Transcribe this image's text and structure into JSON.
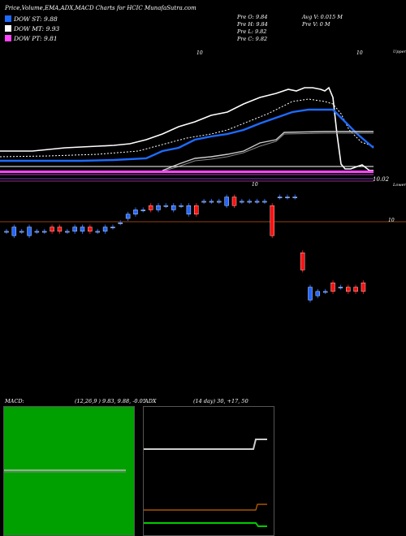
{
  "header": {
    "title": "Price,Volume,EMA,ADX,MACD Charts for HCIC MunafaSutra.com",
    "legend": [
      {
        "label": "DOW ST: 9.88",
        "color": "#1e6bff"
      },
      {
        "label": "DOW MT: 9.93",
        "color": "#ffffff"
      },
      {
        "label": "DOW PT: 9.81",
        "color": "#ff44ff"
      }
    ],
    "ohlc": {
      "open": "Pre   O: 9.84",
      "high": "Pre   H: 9.84",
      "low": "Pre   L: 9.82",
      "close": "Pre   C: 9.82"
    },
    "volume": {
      "avg": "Avg V: 0.015 M",
      "pre": "Pre   V: 0  M"
    }
  },
  "price_panel": {
    "level_upper": "10.02",
    "tag_upper": "Upper",
    "tag_lower": "Lower",
    "marker_10_a": "10",
    "marker_10_b": "10",
    "marker_10_c": "10",
    "marker_10_d": "10"
  },
  "macd_panel": {
    "label": "MACD:",
    "params": "(12,26,9 ) 9.83,  9.88, -0.05"
  },
  "adx_panel": {
    "label": "ADX",
    "params": "(14  day) 30, +17,  50"
  },
  "colors": {
    "up": "#2266ff",
    "down": "#ff1111",
    "dow_st": "#1e6bff",
    "dow_mt": "#ffffff",
    "dow_pt": "#ff44ff",
    "macd_bg": "#00a000",
    "adx_line": "#cccccc",
    "adx_minus": "#cc6600",
    "adx_plus": "#00cc00"
  },
  "chart_data": [
    {
      "type": "candlestick",
      "title": "Price,Volume,EMA,ADX,MACD Charts for HCIC MunafaSutra.com",
      "series": [
        {
          "name": "DOW ST",
          "last": 9.88
        },
        {
          "name": "DOW MT",
          "last": 9.93
        },
        {
          "name": "DOW PT",
          "last": 9.81
        }
      ],
      "candles": [
        {
          "o": 9.96,
          "c": 9.96,
          "dir": "flat"
        },
        {
          "o": 9.95,
          "c": 9.97,
          "dir": "up"
        },
        {
          "o": 9.96,
          "c": 9.96,
          "dir": "flat"
        },
        {
          "o": 9.95,
          "c": 9.97,
          "dir": "up"
        },
        {
          "o": 9.96,
          "c": 9.96,
          "dir": "flat"
        },
        {
          "o": 9.96,
          "c": 9.96,
          "dir": "flat"
        },
        {
          "o": 9.97,
          "c": 9.96,
          "dir": "down"
        },
        {
          "o": 9.97,
          "c": 9.96,
          "dir": "down"
        },
        {
          "o": 9.96,
          "c": 9.96,
          "dir": "flat"
        },
        {
          "o": 9.96,
          "c": 9.97,
          "dir": "up"
        },
        {
          "o": 9.96,
          "c": 9.97,
          "dir": "up"
        },
        {
          "o": 9.97,
          "c": 9.96,
          "dir": "down"
        },
        {
          "o": 9.96,
          "c": 9.96,
          "dir": "flat"
        },
        {
          "o": 9.96,
          "c": 9.97,
          "dir": "up"
        },
        {
          "o": 9.97,
          "c": 9.97,
          "dir": "flat"
        },
        {
          "o": 9.98,
          "c": 9.98,
          "dir": "flat"
        },
        {
          "o": 9.99,
          "c": 10.0,
          "dir": "up"
        },
        {
          "o": 10.0,
          "c": 10.01,
          "dir": "up"
        },
        {
          "o": 10.01,
          "c": 10.01,
          "dir": "flat"
        },
        {
          "o": 10.02,
          "c": 10.01,
          "dir": "down"
        },
        {
          "o": 10.01,
          "c": 10.02,
          "dir": "up"
        },
        {
          "o": 10.02,
          "c": 10.02,
          "dir": "flat"
        },
        {
          "o": 10.01,
          "c": 10.02,
          "dir": "up"
        },
        {
          "o": 10.02,
          "c": 10.02,
          "dir": "flat"
        },
        {
          "o": 10.02,
          "c": 10.0,
          "dir": "up"
        },
        {
          "o": 10.02,
          "c": 10.0,
          "dir": "down"
        },
        {
          "o": 10.03,
          "c": 10.03,
          "dir": "flat"
        },
        {
          "o": 10.03,
          "c": 10.03,
          "dir": "flat"
        },
        {
          "o": 10.03,
          "c": 10.03,
          "dir": "flat"
        },
        {
          "o": 10.02,
          "c": 10.04,
          "dir": "up"
        },
        {
          "o": 10.04,
          "c": 10.02,
          "dir": "down"
        },
        {
          "o": 10.03,
          "c": 10.03,
          "dir": "flat"
        },
        {
          "o": 10.03,
          "c": 10.03,
          "dir": "flat"
        },
        {
          "o": 10.03,
          "c": 10.03,
          "dir": "flat"
        },
        {
          "o": 10.03,
          "c": 10.03,
          "dir": "flat"
        },
        {
          "o": 10.02,
          "c": 9.95,
          "dir": "down"
        },
        {
          "o": 10.04,
          "c": 10.04,
          "dir": "flat"
        },
        {
          "o": 10.04,
          "c": 10.04,
          "dir": "flat"
        },
        {
          "o": 10.04,
          "c": 10.04,
          "dir": "flat"
        },
        {
          "o": 9.91,
          "c": 9.87,
          "dir": "down"
        },
        {
          "o": 9.83,
          "c": 9.8,
          "dir": "up"
        },
        {
          "o": 9.82,
          "c": 9.81,
          "dir": "up"
        },
        {
          "o": 9.82,
          "c": 9.82,
          "dir": "flat"
        },
        {
          "o": 9.84,
          "c": 9.82,
          "dir": "down"
        },
        {
          "o": 9.83,
          "c": 9.83,
          "dir": "flat"
        },
        {
          "o": 9.83,
          "c": 9.82,
          "dir": "down"
        },
        {
          "o": 9.83,
          "c": 9.82,
          "dir": "down"
        },
        {
          "o": 9.84,
          "c": 9.82,
          "dir": "down"
        }
      ]
    },
    {
      "type": "line",
      "title": "MACD: (12,26,9 ) 9.83,  9.88, -0.05",
      "series": [
        {
          "name": "MACD",
          "values": [
            9.83
          ]
        },
        {
          "name": "Signal",
          "values": [
            9.88
          ]
        },
        {
          "name": "Histogram",
          "values": [
            -0.05
          ]
        }
      ]
    },
    {
      "type": "line",
      "title": "ADX (14  day) 30, +17,  50",
      "series": [
        {
          "name": "ADX",
          "values": [
            30
          ]
        },
        {
          "name": "+DI",
          "values": [
            17
          ]
        },
        {
          "name": "-DI",
          "values": [
            50
          ]
        }
      ]
    }
  ]
}
